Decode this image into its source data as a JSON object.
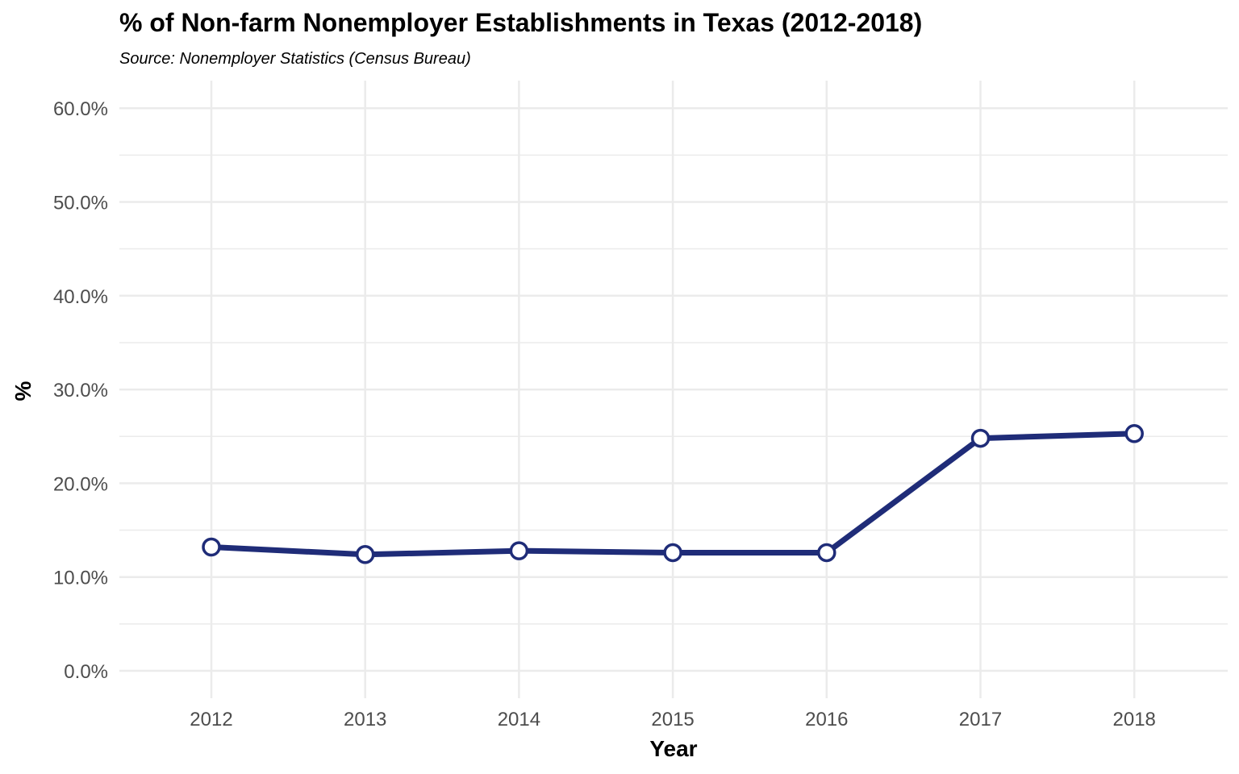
{
  "chart_data": {
    "type": "line",
    "title": "% of Non-farm Nonemployer Establishments in Texas (2012-2018)",
    "subtitle": "Source: Nonemployer Statistics (Census Bureau)",
    "xlabel": "Year",
    "ylabel": "%",
    "x": [
      "2012",
      "2013",
      "2014",
      "2015",
      "2016",
      "2017",
      "2018"
    ],
    "series": [
      {
        "values": [
          13.2,
          12.4,
          12.8,
          12.6,
          12.6,
          24.8,
          25.3
        ]
      }
    ],
    "ylim": [
      0,
      60
    ],
    "yticks": [
      0,
      10,
      20,
      30,
      40,
      50,
      60
    ],
    "ytick_labels": [
      "0.0%",
      "10.0%",
      "20.0%",
      "30.0%",
      "40.0%",
      "50.0%",
      "60.0%"
    ],
    "grid": true,
    "legend": "none",
    "colors": {
      "line": "#1f2c78",
      "marker_fill": "#ffffff",
      "grid": "#ebebeb"
    }
  }
}
